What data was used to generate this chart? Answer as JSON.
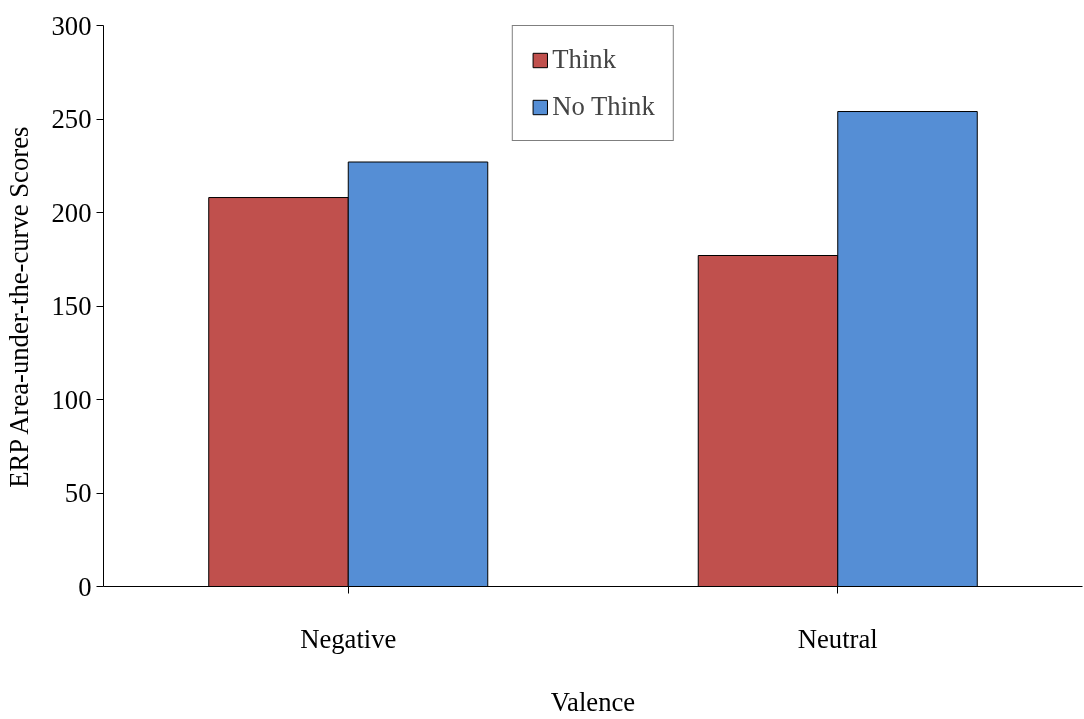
{
  "chart_data": {
    "type": "bar",
    "xlabel": "Valence",
    "ylabel": "ERP Area-under-the-curve Scores",
    "categories": [
      "Negative",
      "Neutral"
    ],
    "series": [
      {
        "name": "Think",
        "color": "#c0504d",
        "values": [
          208,
          177
        ]
      },
      {
        "name": "No Think",
        "color": "#558ed5",
        "values": [
          227,
          254
        ]
      }
    ],
    "ylim": [
      0,
      300
    ],
    "yticks": [
      0,
      50,
      100,
      150,
      200,
      250,
      300
    ],
    "grid": false,
    "legend": "top"
  }
}
